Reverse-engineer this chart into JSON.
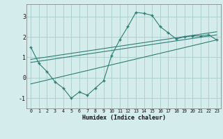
{
  "xlabel": "Humidex (Indice chaleur)",
  "background_color": "#d4eceb",
  "grid_color": "#a8ccca",
  "line_color": "#2e7d74",
  "xlim": [
    -0.5,
    23.5
  ],
  "ylim": [
    -1.5,
    3.6
  ],
  "yticks": [
    -1,
    0,
    1,
    2,
    3
  ],
  "xticks": [
    0,
    1,
    2,
    3,
    4,
    5,
    6,
    7,
    8,
    9,
    10,
    11,
    12,
    13,
    14,
    15,
    16,
    17,
    18,
    19,
    20,
    21,
    22,
    23
  ],
  "series": {
    "main_line": {
      "x": [
        0,
        1,
        2,
        3,
        4,
        5,
        6,
        7,
        8,
        9,
        10,
        11,
        12,
        13,
        14,
        15,
        16,
        17,
        18,
        19,
        20,
        21,
        22,
        23
      ],
      "y": [
        1.5,
        0.7,
        0.3,
        -0.2,
        -0.5,
        -1.0,
        -0.7,
        -0.85,
        -0.5,
        -0.15,
        1.1,
        1.85,
        2.5,
        3.2,
        3.15,
        3.05,
        2.5,
        2.2,
        1.9,
        2.0,
        2.05,
        2.05,
        2.1,
        1.85
      ]
    },
    "upper_trend": {
      "x": [
        0,
        23
      ],
      "y": [
        0.9,
        2.25
      ]
    },
    "middle_trend": {
      "x": [
        0,
        23
      ],
      "y": [
        0.75,
        2.1
      ]
    },
    "lower_trend": {
      "x": [
        0,
        23
      ],
      "y": [
        -0.3,
        1.85
      ]
    }
  }
}
